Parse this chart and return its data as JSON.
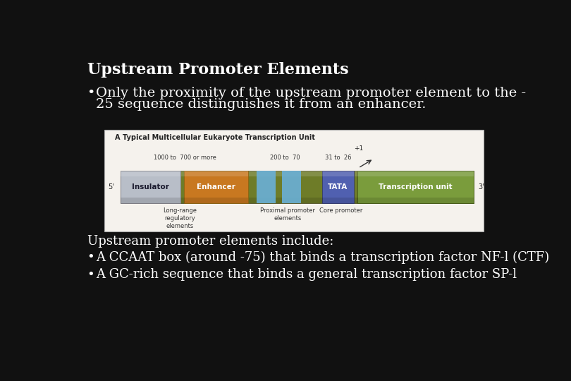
{
  "background_color": "#111111",
  "title": "Upstream Promoter Elements",
  "title_fontsize": 16,
  "title_color": "#ffffff",
  "bullet1_line1": "Only the proximity of the upstream promoter element to the -",
  "bullet1_line2": "25 sequence distinguishes it from an enhancer.",
  "bullet_fontsize": 14,
  "bullet_color": "#ffffff",
  "subtext": "Upstream promoter elements include:",
  "subtext_fontsize": 13,
  "subtext_color": "#ffffff",
  "bullet2": "A CCAAT box (around -75) that binds a transcription factor NF-l (CTF)",
  "bullet3": "A GC-rich sequence that binds a general transcription factor SP-l",
  "diagram_title": "A Typical Multicellular Eukaryote Transcription Unit",
  "diagram_bg": "#f5f2ed",
  "diagram_label_1000": "1000 to  700 or more",
  "diagram_label_200": "200 to  70",
  "diagram_label_31": "31 to  26",
  "diagram_plus1": "+1",
  "diagram_5prime": "5'",
  "diagram_3prime": "3'",
  "insulator_color": "#b8bec8",
  "insulator_text": "Insulator",
  "enhancer_color": "#c87820",
  "enhancer_text": "Enhancer",
  "proximal_color": "#6ab0d8",
  "tata_color": "#5060b0",
  "tata_text": "TATA",
  "transcription_color": "#7a9c3c",
  "transcription_text": "Transcription unit",
  "olive_color": "#6e7c28",
  "long_range_label": "Long-range\nregulatory\nelements",
  "proximal_label": "Proximal promoter\nelements",
  "core_label": "Core promoter"
}
